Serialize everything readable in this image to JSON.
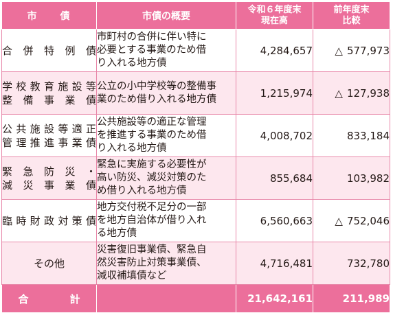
{
  "header": {
    "name": "市　　債",
    "desc": "市債の概要",
    "current_line1": "令和６年度末",
    "current_line2": "現在高",
    "diff_line1": "前年度末",
    "diff_line2": "比較"
  },
  "rows": [
    {
      "name_lines": [
        "合併特例債"
      ],
      "name_justify": true,
      "desc_lines": [
        "市町村の合併に伴い特に",
        "必要とする事業のため借",
        "り入れる地方債"
      ],
      "current": "4,284,657",
      "diff_mark": "△",
      "diff": "577,973"
    },
    {
      "name_lines": [
        "学校教育施設等",
        "整備事業債"
      ],
      "name_justify": true,
      "desc_lines": [
        "公立の小中学校等の整備事",
        "業のため借り入れる地方債"
      ],
      "current": "1,215,974",
      "diff_mark": "△",
      "diff": "127,938"
    },
    {
      "name_lines": [
        "公共施設等適正",
        "管理推進事業債"
      ],
      "name_justify": true,
      "desc_lines": [
        "公共施設等の適正な管理",
        "を推進する事業のため借",
        "り入れる地方債"
      ],
      "current": "4,008,702",
      "diff_mark": "",
      "diff": "833,184"
    },
    {
      "name_lines": [
        "緊急防災・",
        "減災事業債"
      ],
      "name_justify": true,
      "desc_lines": [
        "緊急に実施する必要性が",
        "高い防災、減災対策のた",
        "め借り入れる地方債"
      ],
      "current": "855,684",
      "diff_mark": "",
      "diff": "103,982"
    },
    {
      "name_lines": [
        "臨時財政対策債"
      ],
      "name_justify": true,
      "desc_lines": [
        "地方交付税不足分の一部",
        "を地方自治体が借り入れ",
        "る地方債"
      ],
      "current": "6,560,663",
      "diff_mark": "△",
      "diff": "752,046"
    },
    {
      "name_lines": [
        "その他"
      ],
      "name_justify": false,
      "desc_lines": [
        "災害復旧事業債、緊急自",
        "然災害防止対策事業債、",
        "減収補填債など"
      ],
      "current": "4,716,481",
      "diff_mark": "",
      "diff": "732,780"
    }
  ],
  "total": {
    "label": "合計",
    "current": "21,642,161",
    "diff": "211,989"
  },
  "colors": {
    "header_bg": "#ec6f9b",
    "row_tint": "#fde7ee",
    "border": "#e886a8"
  }
}
